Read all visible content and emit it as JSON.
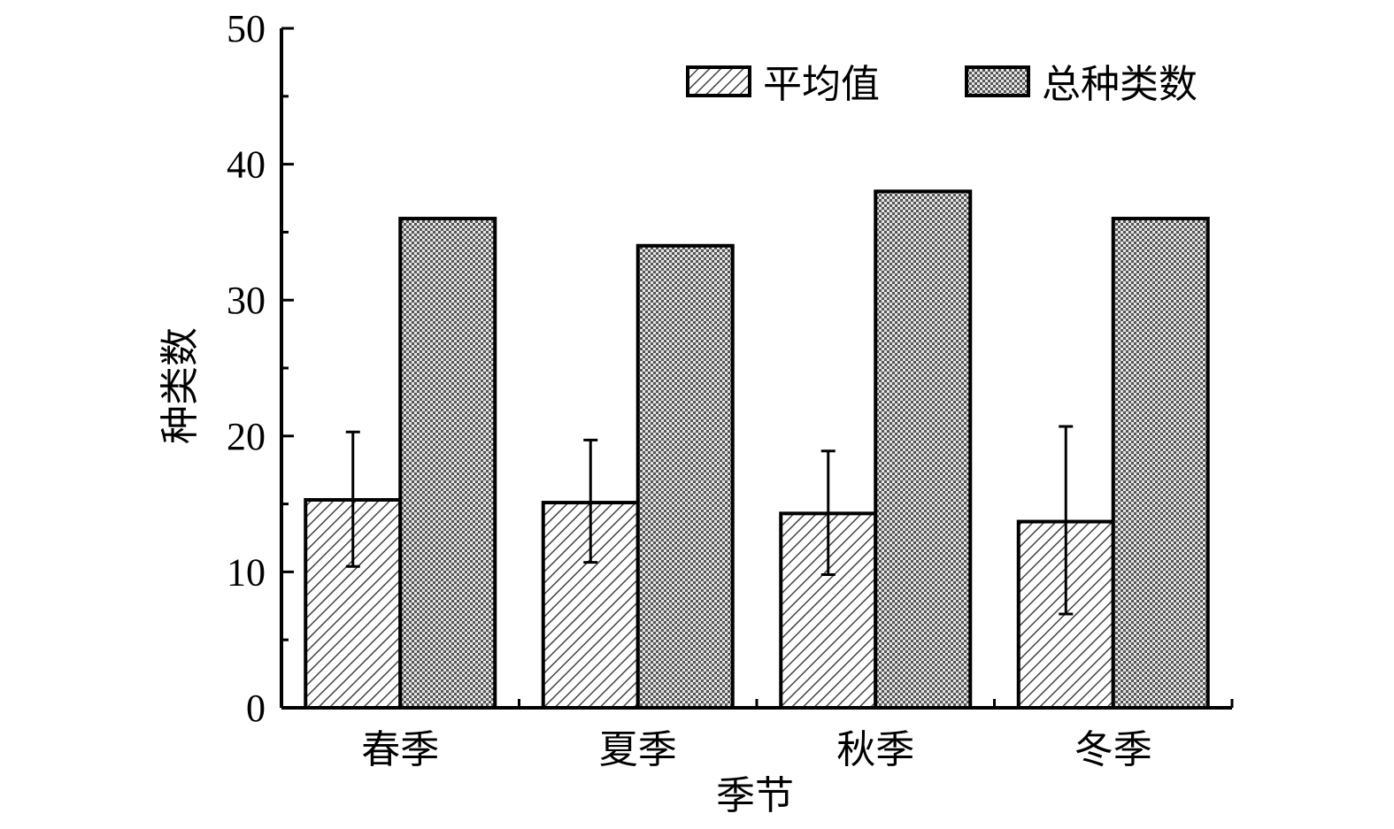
{
  "chart_data": {
    "type": "bar",
    "xlabel": "季节",
    "ylabel": "种类数",
    "ylim": [
      0,
      50
    ],
    "yticks": [
      0,
      10,
      20,
      30,
      40,
      50
    ],
    "categories": [
      "春季",
      "夏季",
      "秋季",
      "冬季"
    ],
    "series": [
      {
        "name": "平均值",
        "values": [
          15.3,
          15.1,
          14.3,
          13.7
        ],
        "error_low": [
          10.4,
          10.7,
          9.8,
          6.9
        ],
        "error_high": [
          20.3,
          19.7,
          18.9,
          20.7
        ],
        "pattern": "diagonal-hatch"
      },
      {
        "name": "总种类数",
        "values": [
          36,
          34,
          38,
          36
        ],
        "pattern": "crosshatch"
      }
    ],
    "legend_position": "top-right",
    "grid": false
  }
}
